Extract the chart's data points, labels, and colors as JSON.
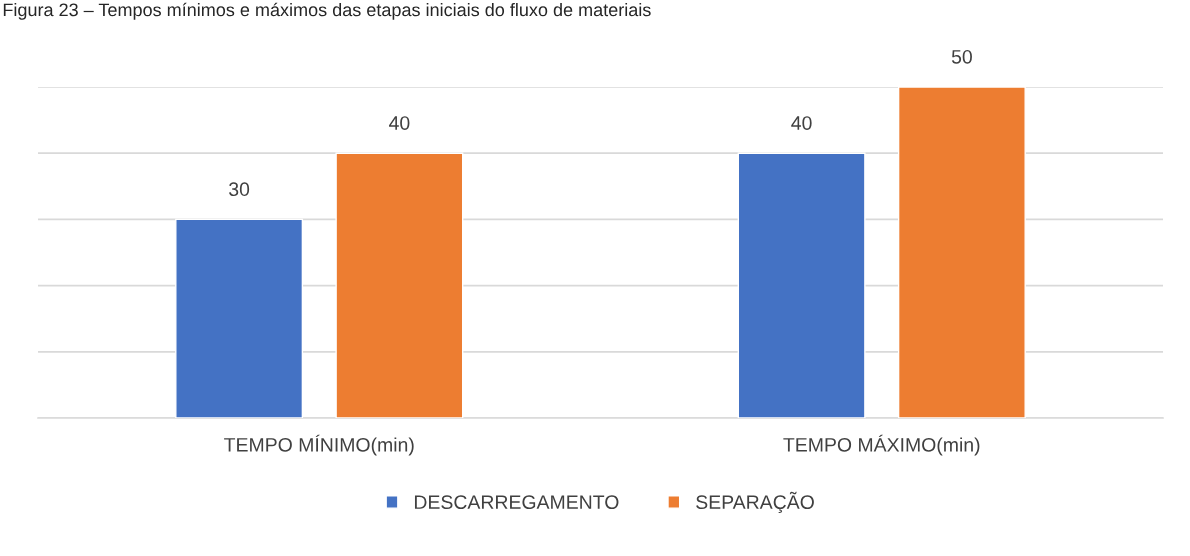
{
  "chart_data": {
    "type": "bar",
    "title": "Figura 23 – Tempos mínimos e máximos das etapas iniciais do fluxo de materiais",
    "categories": [
      "TEMPO MÍNIMO(min)",
      "TEMPO MÁXIMO(min)"
    ],
    "series": [
      {
        "name": "DESCARREGAMENTO",
        "color": "#4472c4",
        "values": [
          30,
          40
        ]
      },
      {
        "name": "SEPARAÇÃO",
        "color": "#ed7d31",
        "values": [
          40,
          50
        ]
      }
    ],
    "ylim": [
      0,
      50
    ],
    "yticks": [
      {
        "value": 0,
        "label": null
      },
      {
        "value": 10,
        "label": null
      },
      {
        "value": 20,
        "label": null
      },
      {
        "value": 30,
        "label": null
      },
      {
        "value": 40,
        "label": null
      },
      {
        "value": 50,
        "label": null
      }
    ],
    "tick_labels": "x",
    "grid": "y",
    "legend": "bottom",
    "data_labels": true
  }
}
